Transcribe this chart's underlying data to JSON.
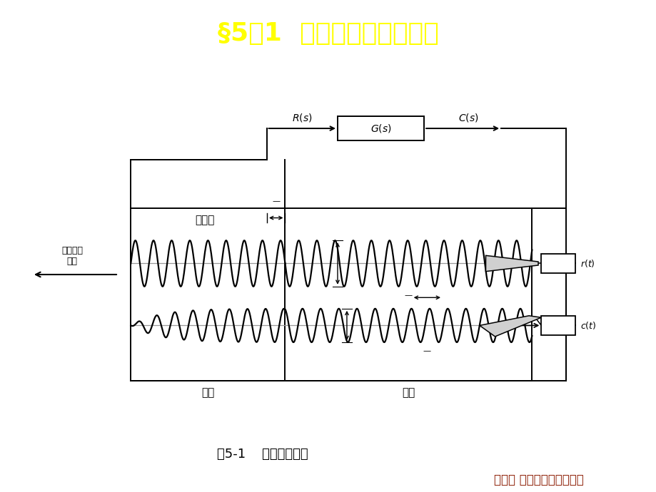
{
  "title": "§5－1  频率特性的基本概念",
  "title_color": "#FFFF00",
  "title_bg_color": "#1a2e6e",
  "red_bar_color": "#AA0000",
  "footer_text": "第五章 控制系统的频域分析",
  "footer_color": "#8B1A00",
  "fig_caption": "图5-1    频率响应图示",
  "bg_color": "#FFFFFF",
  "lc": "#000000",
  "label_jilu": "记录纸",
  "label_zhuan_move": "纸带运动",
  "label_zhuan_dir": "方向",
  "label_shuntai": "瞬态",
  "label_wentai": "稳态"
}
